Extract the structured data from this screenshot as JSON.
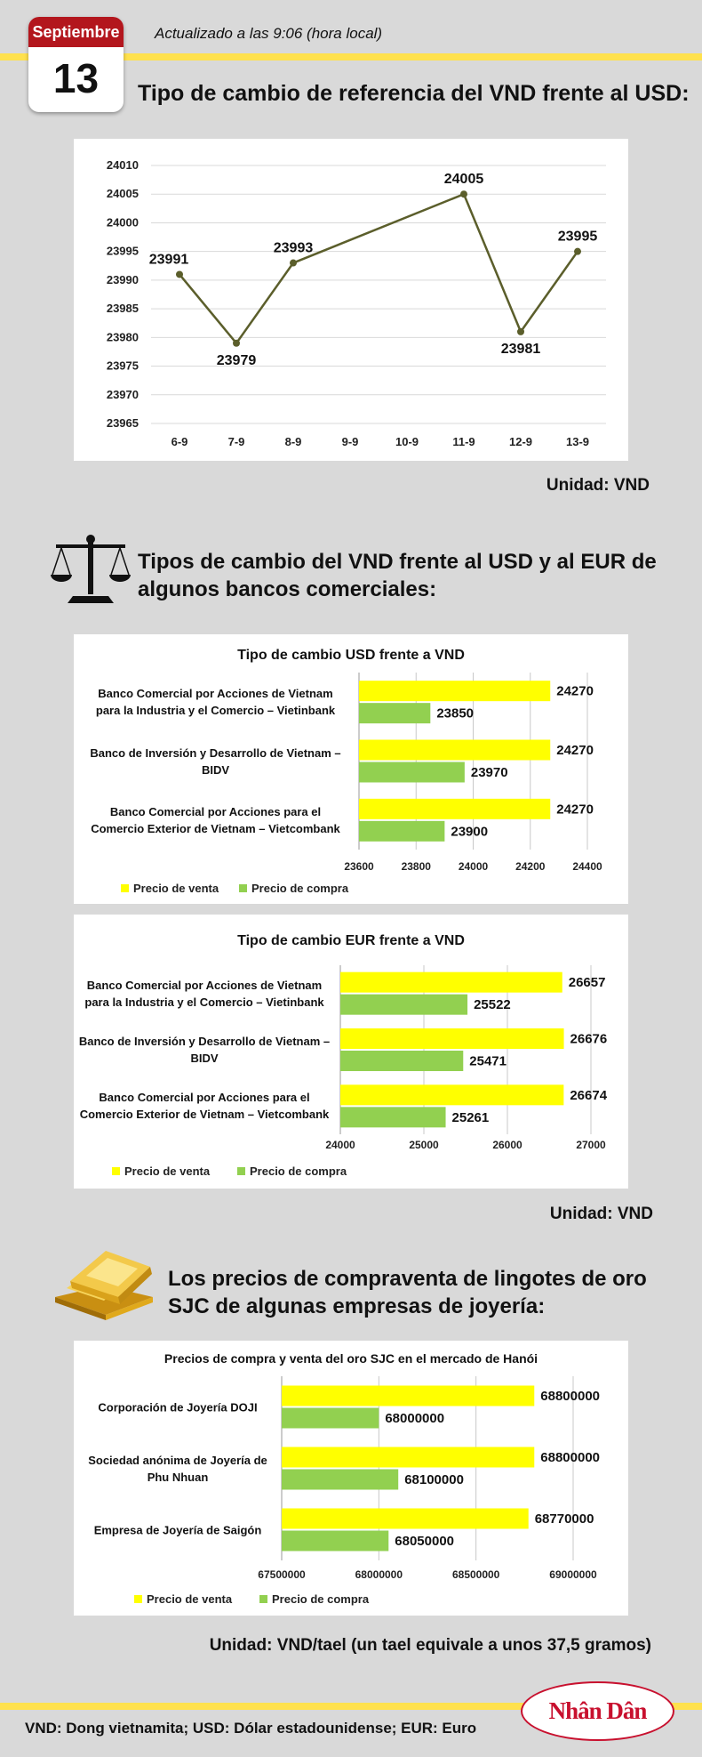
{
  "header": {
    "month": "Septiembre",
    "day": "13",
    "updated": "Actualizado a las 9:06 (hora local)",
    "title": "Tipo de cambio de referencia del VND frente al USD:"
  },
  "section2_title": "Tipos de cambio del VND frente al USD y al EUR de algunos bancos comerciales:",
  "section3_title": "Los precios de compraventa de lingotes de oro SJC de algunas empresas de joyería:",
  "units": [
    "Unidad: VND",
    "Unidad: VND",
    "Unidad: VND/tael (un tael equivale a unos 37,5 gramos)"
  ],
  "footer": "VND: Dong vietnamita; USD: Dólar estadounidense; EUR: Euro",
  "logo": "Nhân Dân",
  "chart_data": [
    {
      "type": "line",
      "categories": [
        "6-9",
        "7-9",
        "8-9",
        "9-9",
        "10-9",
        "11-9",
        "12-9",
        "13-9"
      ],
      "x": [
        "6-9",
        "7-9",
        "8-9",
        "11-9",
        "12-9",
        "13-9"
      ],
      "values": [
        23991,
        23979,
        23993,
        24005,
        23981,
        23995
      ],
      "ylim": [
        23965,
        24010
      ],
      "yticks": [
        23965,
        23970,
        23975,
        23980,
        23985,
        23990,
        23995,
        24000,
        24005,
        24010
      ],
      "color": "#5b5e2b",
      "grid": true
    },
    {
      "type": "hbar",
      "title": "Tipo de cambio USD frente a VND",
      "categories": [
        "Banco Comercial por Acciones de Vietnam para la Industria y el Comercio – Vietinbank",
        "Banco de Inversión y Desarrollo de Vietnam – BIDV",
        "Banco Comercial por Acciones para el Comercio Exterior de Vietnam – Vietcombank"
      ],
      "series": [
        {
          "name": "Precio de venta",
          "color": "#ffff00",
          "values": [
            24270,
            24270,
            24270
          ]
        },
        {
          "name": "Precio de compra",
          "color": "#92d050",
          "values": [
            23850,
            23970,
            23900
          ]
        }
      ],
      "xlim": [
        23600,
        24400
      ],
      "xticks": [
        23600,
        23800,
        24000,
        24200,
        24400
      ],
      "grid": true
    },
    {
      "type": "hbar",
      "title": "Tipo de cambio EUR frente a VND",
      "categories": [
        "Banco Comercial por Acciones de Vietnam para la Industria y el Comercio – Vietinbank",
        "Banco de Inversión y Desarrollo de Vietnam – BIDV",
        "Banco Comercial por Acciones para el Comercio Exterior de Vietnam – Vietcombank"
      ],
      "series": [
        {
          "name": "Precio de venta",
          "color": "#ffff00",
          "values": [
            26657,
            26676,
            26674
          ]
        },
        {
          "name": "Precio de compra",
          "color": "#92d050",
          "values": [
            25522,
            25471,
            25261
          ]
        }
      ],
      "xlim": [
        24000,
        27000
      ],
      "xticks": [
        24000,
        25000,
        26000,
        27000
      ],
      "grid": true
    },
    {
      "type": "hbar",
      "title": "Precios de compra y venta del oro SJC en el mercado de Hanói",
      "categories": [
        "Corporación de Joyería DOJI",
        "Sociedad anónima de Joyería de Phu Nhuan",
        "Empresa de Joyería de Saigón"
      ],
      "series": [
        {
          "name": "Precio de venta",
          "color": "#ffff00",
          "values": [
            68800000,
            68800000,
            68770000
          ]
        },
        {
          "name": "Precio de compra",
          "color": "#92d050",
          "values": [
            68000000,
            68100000,
            68050000
          ]
        }
      ],
      "xlim": [
        67500000,
        69000000
      ],
      "xticks": [
        67500000,
        68000000,
        68500000,
        69000000
      ],
      "grid": true
    }
  ]
}
